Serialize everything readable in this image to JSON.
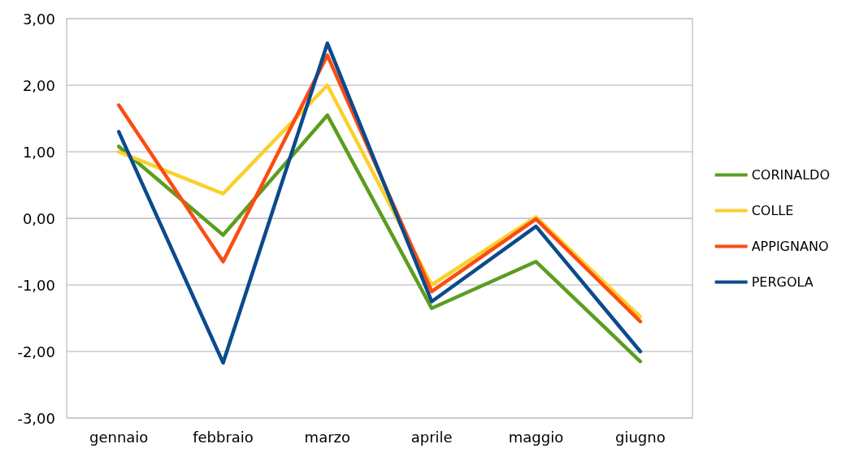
{
  "chart_data": {
    "type": "line",
    "categories": [
      "gennaio",
      "febbraio",
      "marzo",
      "aprile",
      "maggio",
      "giugno"
    ],
    "series": [
      {
        "name": "CORINALDO",
        "color": "#5a9e1f",
        "values": [
          1.08,
          -0.25,
          1.55,
          -1.35,
          -0.65,
          -2.15
        ]
      },
      {
        "name": "COLLE",
        "color": "#fad02c",
        "values": [
          1.0,
          0.37,
          2.0,
          -1.0,
          0.02,
          -1.48
        ]
      },
      {
        "name": "APPIGNANO",
        "color": "#fc4c12",
        "values": [
          1.7,
          -0.65,
          2.45,
          -1.1,
          -0.01,
          -1.55
        ]
      },
      {
        "name": "PERGOLA",
        "color": "#0b4a8c",
        "values": [
          1.3,
          -2.17,
          2.63,
          -1.25,
          -0.12,
          -2.0
        ]
      }
    ],
    "ylim": [
      -3,
      3
    ],
    "yticks": [
      {
        "value": -3,
        "label": "-3,00"
      },
      {
        "value": -2,
        "label": "-2,00"
      },
      {
        "value": -1,
        "label": "-1,00"
      },
      {
        "value": 0,
        "label": "0,00"
      },
      {
        "value": 1,
        "label": "1,00"
      },
      {
        "value": 2,
        "label": "2,00"
      },
      {
        "value": 3,
        "label": "3,00"
      }
    ],
    "grid": "y",
    "legend": "right",
    "marker": "none",
    "line_style": "solid"
  }
}
